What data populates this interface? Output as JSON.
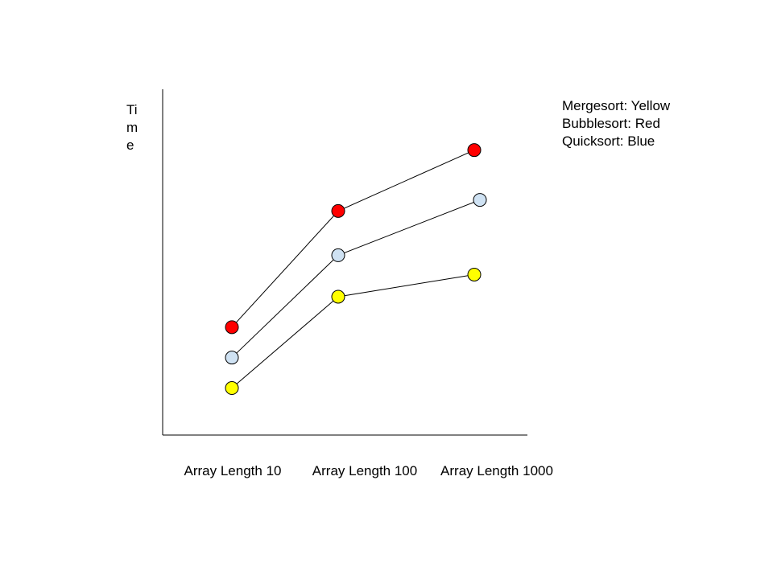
{
  "chart_data": {
    "type": "line",
    "title": "",
    "ylabel": "Time",
    "ylabel_lines": [
      "Ti",
      "m",
      "e"
    ],
    "xlabel": "",
    "categories": [
      "Array Length 10",
      "Array Length 100",
      "Array Length 1000"
    ],
    "ylim": [
      0,
      100
    ],
    "grid": false,
    "y_ticks_shown": false,
    "legend_position": "top-right",
    "legend": [
      {
        "text": "Mergesort: Yellow"
      },
      {
        "text": "Bubblesort: Red"
      },
      {
        "text": "Quicksort: Blue"
      }
    ],
    "series": [
      {
        "color": "#ff0000",
        "values": [
          39,
          81,
          103
        ]
      },
      {
        "color": "#cfe2f3",
        "values": [
          28,
          65,
          85
        ]
      },
      {
        "color": "#ffff00",
        "values": [
          17,
          50,
          58
        ]
      }
    ]
  }
}
